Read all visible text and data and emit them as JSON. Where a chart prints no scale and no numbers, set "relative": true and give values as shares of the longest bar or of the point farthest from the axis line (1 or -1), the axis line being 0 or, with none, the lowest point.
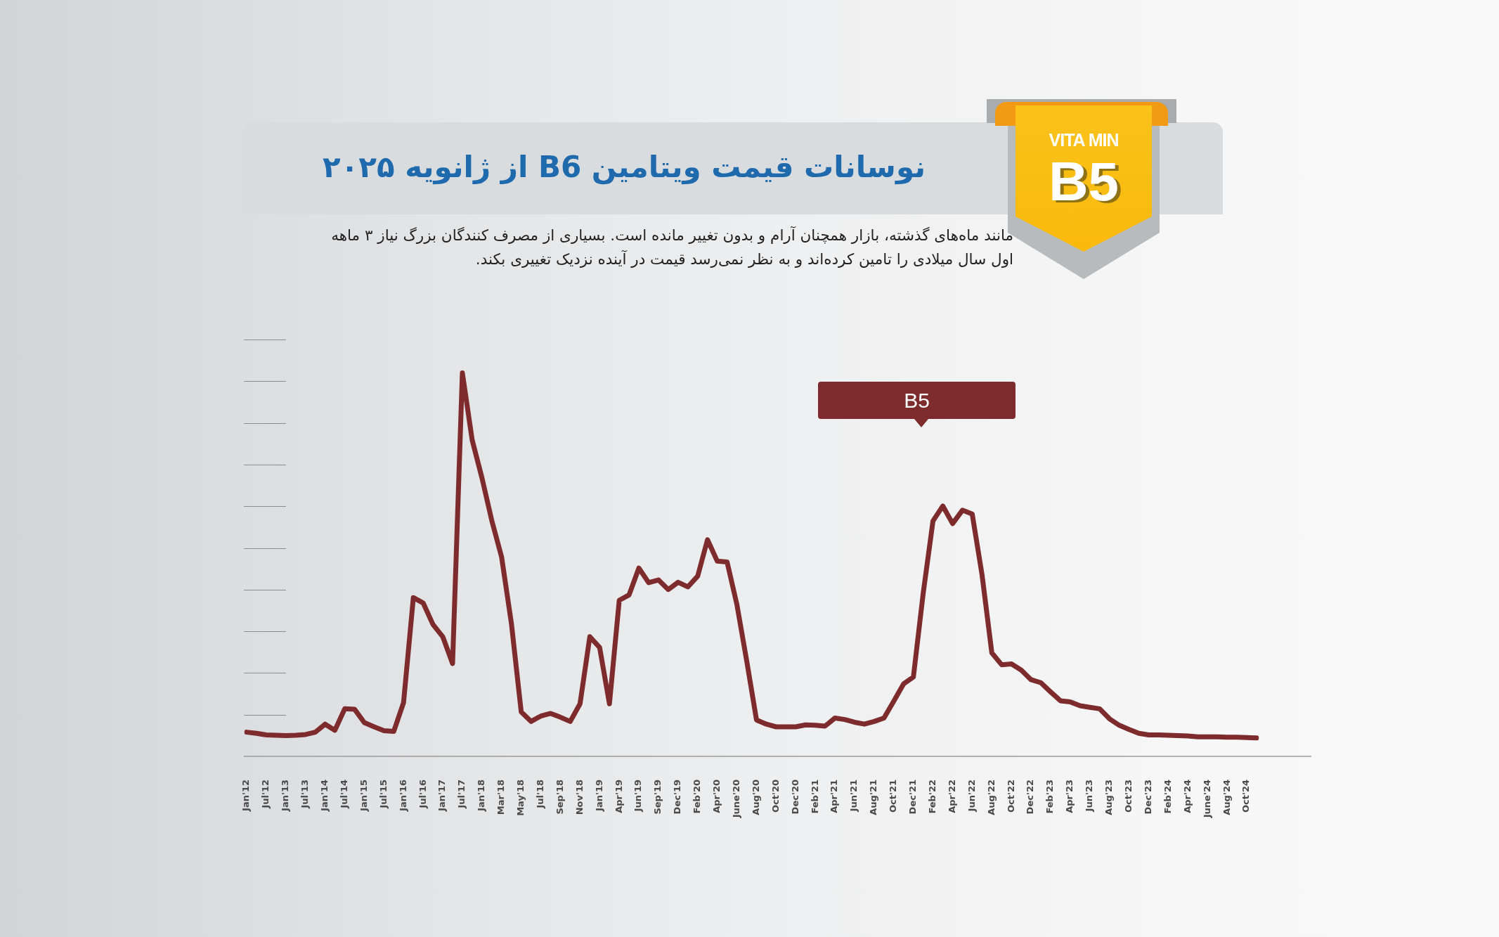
{
  "chart_data": {
    "type": "line",
    "title": "نوسانات قیمت ویتامین B6 از ژانویه ۲۰۲۵",
    "subtitle": "مانند ماه‌های گذشته، بازار همچنان آرام و بدون تغییر مانده است. بسیاری از مصرف کنندگان بزرگ نیاز ۳ ماهه اول سال میلادی را تامین کرده‌اند و به نظر نمی‌رسد قیمت در آینده نزدیک تغییری بکند.",
    "annotations": [
      "VITA MIN",
      "B5"
    ],
    "relative": true,
    "categories": [
      "Jan'12",
      null,
      "Jul'12",
      null,
      "Jan'13",
      null,
      "Jul'13",
      null,
      "Jan'14",
      null,
      "Jul'14",
      null,
      "Jan'15",
      null,
      "Jul'15",
      null,
      "Jan'16",
      null,
      "Jul'16",
      null,
      "Jan'17",
      null,
      "Jul'17",
      null,
      "Jan'18",
      null,
      "Mar'18",
      null,
      "May'18",
      null,
      "Jul'18",
      null,
      "Sep'18",
      null,
      "Nov'18",
      null,
      "Jan'19",
      null,
      "Apr'19",
      null,
      "Jun'19",
      null,
      "Sep'19",
      null,
      "Dec'19",
      null,
      "Feb'20",
      null,
      "Apr'20",
      null,
      "June'20",
      null,
      "Aug'20",
      null,
      "Oct'20",
      null,
      "Dec'20",
      null,
      "Feb'21",
      null,
      "Apr'21",
      null,
      "Jun'21",
      null,
      "Aug'21",
      null,
      "Oct'21",
      null,
      "Dec'21",
      null,
      "Feb'22",
      null,
      "Apr'22",
      null,
      "Jun'22",
      null,
      "Aug'22",
      null,
      "Oct'22",
      null,
      "Dec'22",
      null,
      "Feb'23",
      null,
      "Apr'23",
      null,
      "Jun'23",
      null,
      "Aug'23",
      null,
      "Oct'23",
      null,
      "Dec'23",
      null,
      "Feb'24",
      null,
      "Apr'24",
      null,
      "June'24",
      null,
      "Aug'24",
      null,
      "Oct'24",
      null
    ],
    "series": [
      {
        "name": "B5",
        "color": "#7d2b2c",
        "values": [
          0.063,
          0.06,
          0.056,
          0.055,
          0.054,
          0.055,
          0.057,
          0.063,
          0.084,
          0.068,
          0.124,
          0.123,
          0.088,
          0.077,
          0.067,
          0.065,
          0.14,
          0.414,
          0.4,
          0.344,
          0.312,
          0.242,
          1.0,
          0.825,
          0.726,
          0.615,
          0.52,
          0.347,
          0.116,
          0.091,
          0.105,
          0.112,
          0.102,
          0.091,
          0.137,
          0.312,
          0.284,
          0.137,
          0.407,
          0.421,
          0.491,
          0.453,
          0.46,
          0.435,
          0.454,
          0.442,
          0.47,
          0.565,
          0.509,
          0.507,
          0.396,
          0.249,
          0.095,
          0.084,
          0.077,
          0.077,
          0.077,
          0.082,
          0.081,
          0.079,
          0.1,
          0.096,
          0.089,
          0.084,
          0.091,
          0.1,
          0.144,
          0.189,
          0.207,
          0.425,
          0.614,
          0.653,
          0.607,
          0.642,
          0.632,
          0.474,
          0.27,
          0.239,
          0.241,
          0.225,
          0.2,
          0.192,
          0.168,
          0.145,
          0.142,
          0.132,
          0.128,
          0.124,
          0.098,
          0.081,
          0.07,
          0.06,
          0.056,
          0.056,
          0.055,
          0.054,
          0.053,
          0.051,
          0.051,
          0.051,
          0.05,
          0.05,
          0.049,
          0.048
        ]
      }
    ]
  }
}
